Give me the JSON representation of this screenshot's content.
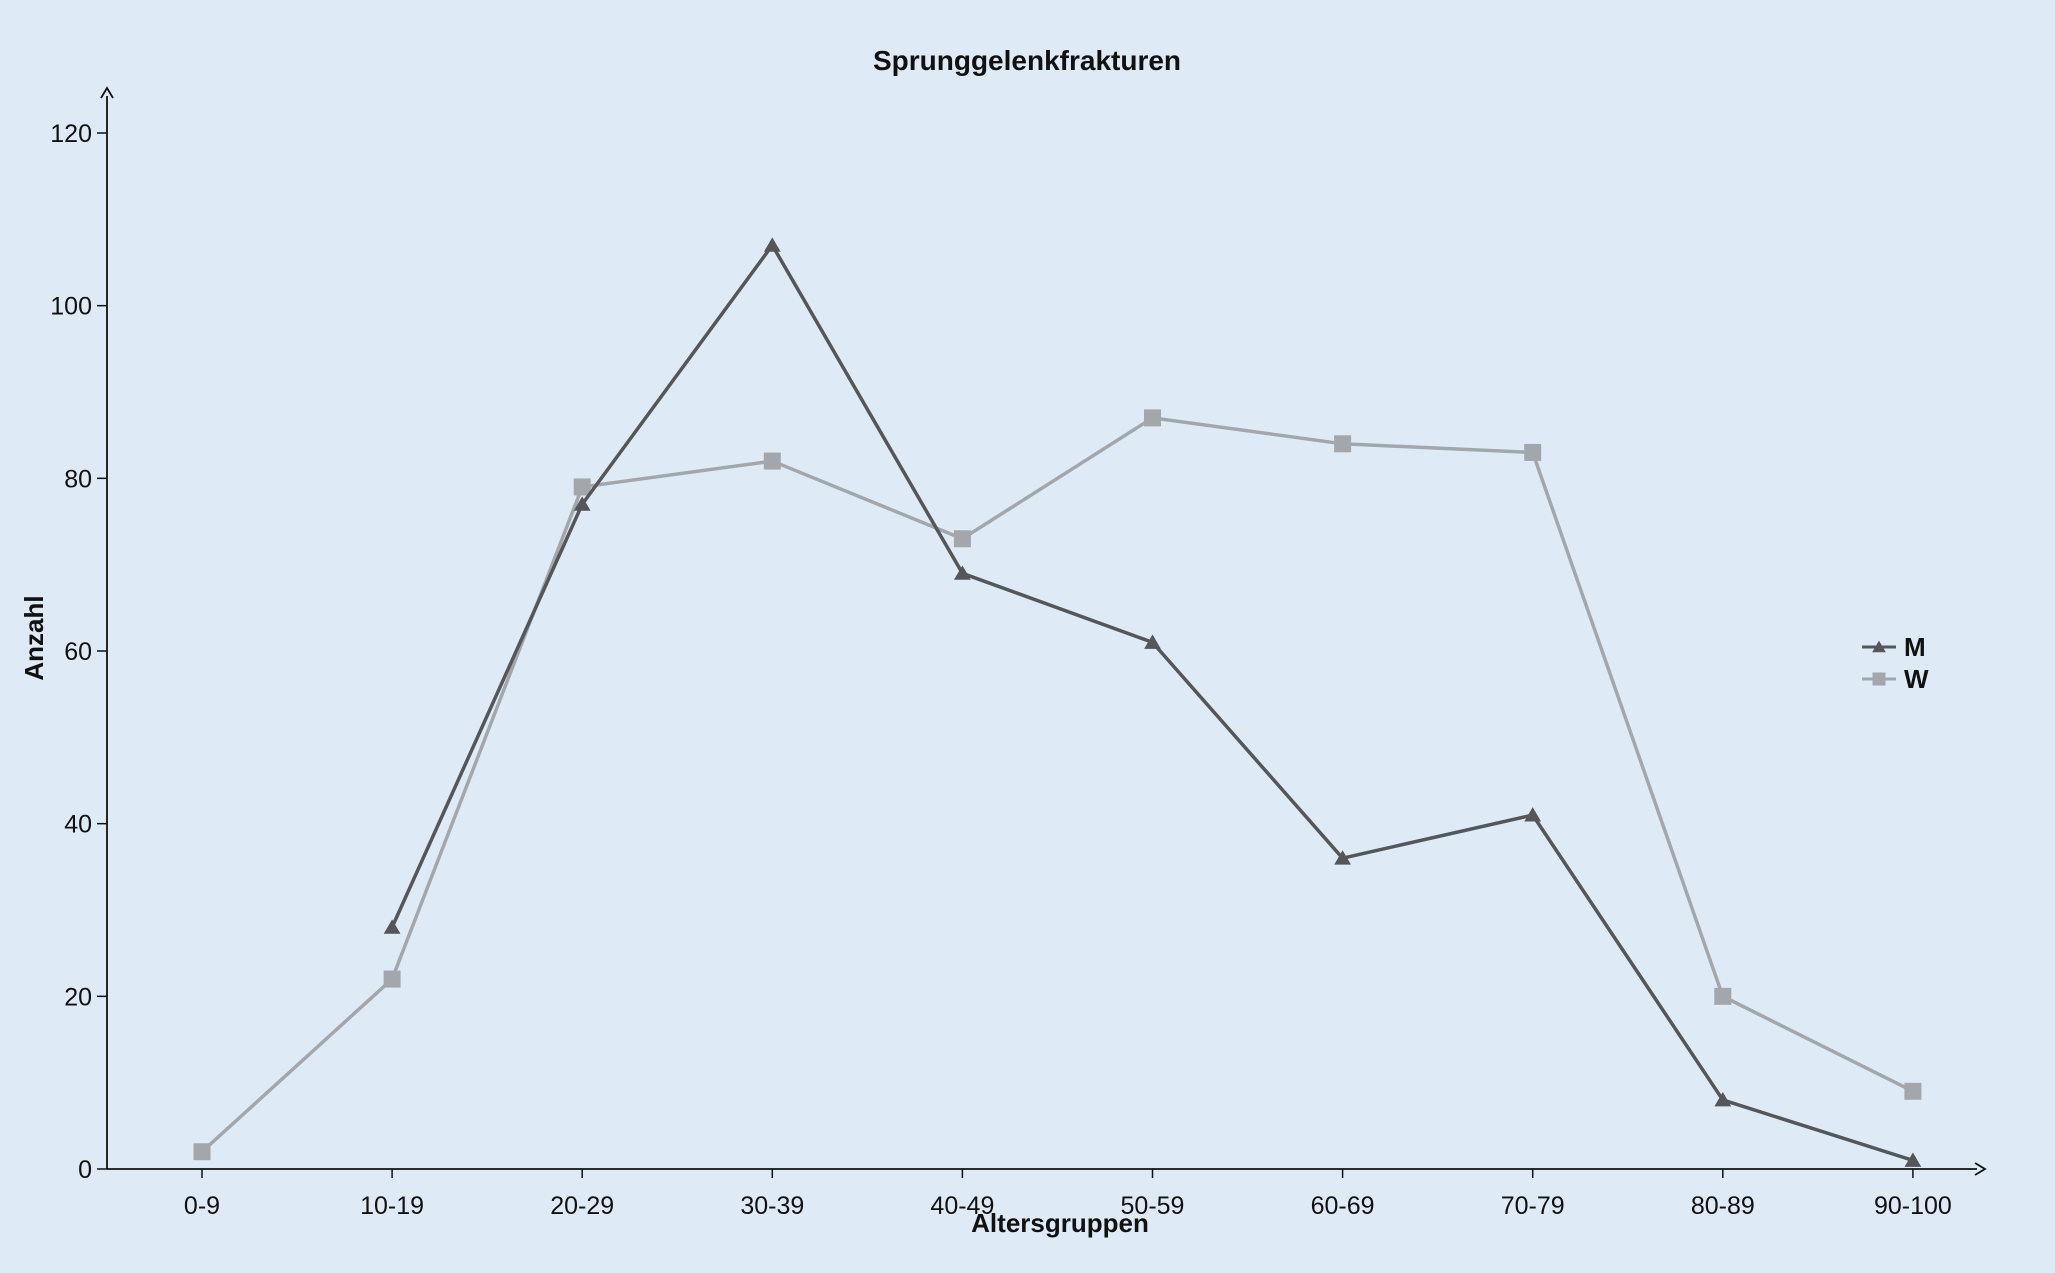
{
  "chart_data": {
    "type": "line",
    "title": "Sprunggelenkfrakturen",
    "xlabel": "Altersgruppen",
    "ylabel": "Anzahl",
    "categories": [
      "0-9",
      "10-19",
      "20-29",
      "30-39",
      "40-49",
      "50-59",
      "60-69",
      "70-79",
      "80-89",
      "90-100"
    ],
    "ylim": [
      0,
      120
    ],
    "yticks": [
      0,
      20,
      40,
      60,
      80,
      100,
      120
    ],
    "grid": false,
    "legend_position": "right",
    "series": [
      {
        "name": "M",
        "color": "#545659",
        "marker": "triangle",
        "values": [
          null,
          28,
          77,
          107,
          69,
          61,
          36,
          41,
          8,
          1
        ]
      },
      {
        "name": "W",
        "color": "#a3a7ac",
        "marker": "square",
        "values": [
          2,
          22,
          79,
          82,
          73,
          87,
          84,
          83,
          20,
          9
        ]
      }
    ],
    "colors": {
      "background": "#deebf7",
      "axis": "#111111"
    }
  }
}
